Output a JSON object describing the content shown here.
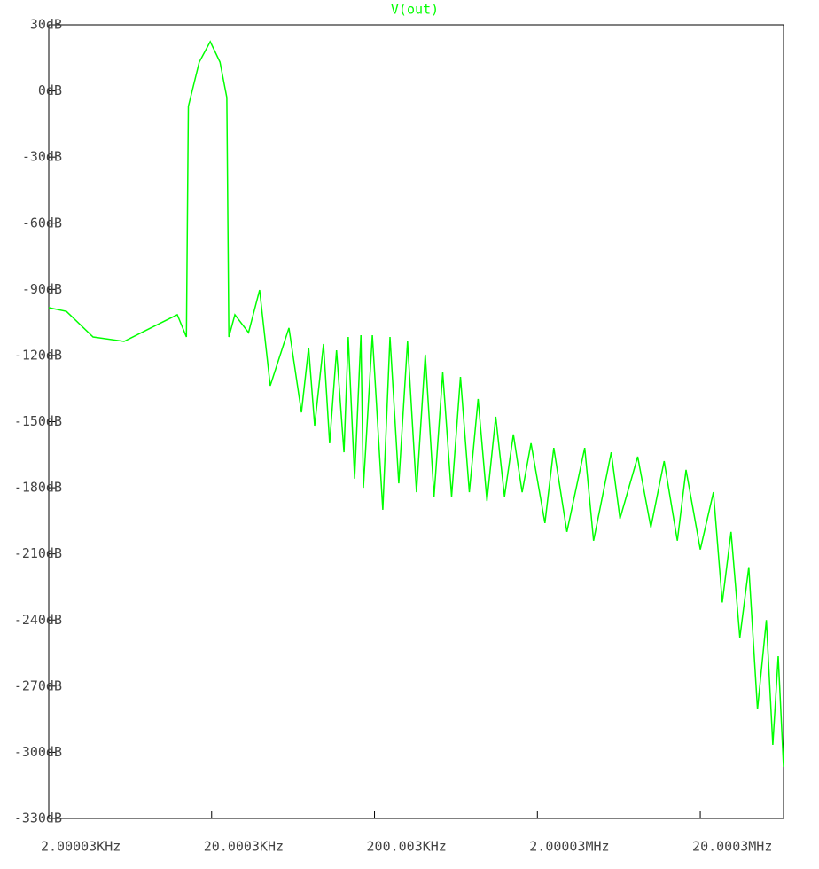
{
  "chart_data": {
    "type": "line",
    "title": "V(out)",
    "color": "#00ff00",
    "xscale": "log",
    "x": [
      2000,
      2570,
      3740,
      5800,
      8460,
      12300,
      14000,
      14400,
      16800,
      19600,
      22500,
      24800,
      25500,
      27800,
      33700,
      39400,
      45800,
      59700,
      71200,
      78800,
      85800,
      97300,
      106000,
      117000,
      130000,
      138000,
      151000,
      165000,
      171000,
      194000,
      225000,
      249000,
      282000,
      319000,
      362000,
      410000,
      464000,
      525000,
      595000,
      674000,
      764000,
      865000,
      980000,
      1110000,
      1257000,
      1424000,
      1613000,
      1827000,
      2226000,
      2522000,
      3034000,
      3906000,
      4426000,
      5680000,
      6434000,
      8260000,
      9940000,
      12000000,
      14460000,
      16360000,
      20000000,
      24100000,
      27300000,
      30900000,
      35000000,
      39700000,
      44900000,
      50900000,
      55800000,
      60200000,
      64900000
    ],
    "values": [
      -98.3,
      -100,
      -111.6,
      -113.6,
      -107.5,
      -101.5,
      -111.6,
      -7,
      13.1,
      22.4,
      13.1,
      -3,
      -111.6,
      -101.5,
      -109.6,
      -90.3,
      -133.7,
      -107.5,
      -145.8,
      -116.4,
      -151.8,
      -114.8,
      -159.8,
      -117.6,
      -163.9,
      -111.6,
      -175.9,
      -110.8,
      -180,
      -110.8,
      -190,
      -111.6,
      -178,
      -113.6,
      -182,
      -119.6,
      -184,
      -127.7,
      -184,
      -129.7,
      -182,
      -139.7,
      -186,
      -147.8,
      -184,
      -155.8,
      -182,
      -159.8,
      -196,
      -161.9,
      -200,
      -161.9,
      -204,
      -163.9,
      -194,
      -165.9,
      -198,
      -167.9,
      -204,
      -171.9,
      -208,
      -182,
      -232,
      -200,
      -248,
      -216,
      -280.5,
      -240,
      -296.6,
      -256.4,
      -306.6
    ],
    "xlim": [
      2000.03,
      64900000
    ],
    "xticks": [
      {
        "value": 2000.03,
        "label": "2.00003KHz"
      },
      {
        "value": 20000.3,
        "label": "20.0003KHz"
      },
      {
        "value": 200003,
        "label": "200.003KHz"
      },
      {
        "value": 2000030,
        "label": "2.00003MHz"
      },
      {
        "value": 20000300,
        "label": "20.0003MHz"
      }
    ],
    "ylim": [
      -330,
      30
    ],
    "yticks": [
      {
        "value": 30,
        "label": "30dB"
      },
      {
        "value": 0,
        "label": "0dB"
      },
      {
        "value": -30,
        "label": "-30dB"
      },
      {
        "value": -60,
        "label": "-60dB"
      },
      {
        "value": -90,
        "label": "-90dB"
      },
      {
        "value": -120,
        "label": "-120dB"
      },
      {
        "value": -150,
        "label": "-150dB"
      },
      {
        "value": -180,
        "label": "-180dB"
      },
      {
        "value": -210,
        "label": "-210dB"
      },
      {
        "value": -240,
        "label": "-240dB"
      },
      {
        "value": -270,
        "label": "-270dB"
      },
      {
        "value": -300,
        "label": "-300dB"
      },
      {
        "value": -330,
        "label": "-330dB"
      }
    ]
  }
}
